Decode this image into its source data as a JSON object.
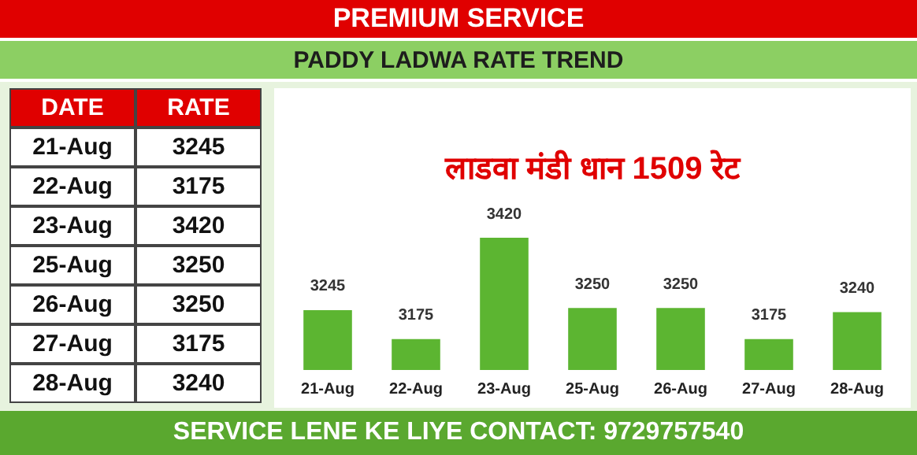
{
  "chart_data": [
    {
      "type": "other",
      "annotations": [
        "DATE",
        "RATE",
        "21-Aug",
        "3245",
        "22-Aug",
        "3175",
        "23-Aug",
        "3420",
        "25-Aug",
        "3250",
        "26-Aug",
        "3250",
        "27-Aug",
        "3175",
        "28-Aug",
        "3240"
      ]
    },
    {
      "type": "bar",
      "title": "PADDY LADWA RATE TREND",
      "subtitle": "लाडवा मंडी धान 1509 रेट",
      "categories": [
        "21-Aug",
        "22-Aug",
        "23-Aug",
        "25-Aug",
        "26-Aug",
        "27-Aug",
        "28-Aug"
      ],
      "values": [
        3245,
        3175,
        3420,
        3250,
        3250,
        3175,
        3240
      ],
      "color": "#5cb531",
      "data_labels": true,
      "grid": false,
      "legend": false,
      "annotations": [
        "PREMIUM SERVICE",
        "SERVICE LENE KE LIYE CONTACT: 9729757540"
      ]
    }
  ]
}
